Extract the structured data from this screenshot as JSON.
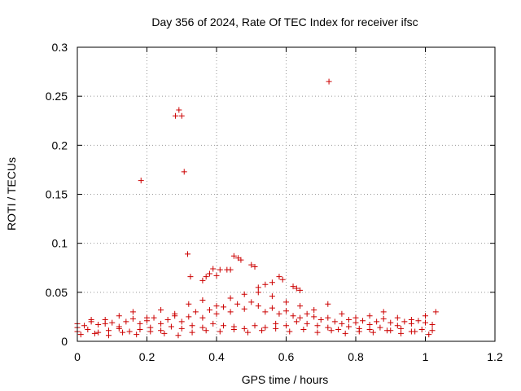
{
  "chart_data": {
    "type": "scatter",
    "title": "Day 356 of 2024, Rate Of TEC Index for receiver ifsc",
    "xlabel": "GPS time / hours",
    "ylabel": "ROTI / TECUs",
    "xlim": [
      0,
      1.2
    ],
    "ylim": [
      0,
      0.3
    ],
    "xticks": [
      "0",
      "0.2",
      "0.4",
      "0.6",
      "0.8",
      "1",
      "1.2"
    ],
    "yticks": [
      "0",
      "0.05",
      "0.1",
      "0.15",
      "0.2",
      "0.25",
      "0.3"
    ],
    "grid": true,
    "marker": "+",
    "marker_color": "#cc0000",
    "series": [
      {
        "x": [
          0.183,
          0.282,
          0.292,
          0.3,
          0.307,
          0.317,
          0.723,
          0.45,
          0.462,
          0.47,
          0.5,
          0.51,
          0.38,
          0.39,
          0.4,
          0.41,
          0.43,
          0.44,
          0.36,
          0.37,
          0.325,
          0.58,
          0.59,
          0.56,
          0.54,
          0.52,
          0.62,
          0.63,
          0.64
        ],
        "y": [
          0.164,
          0.23,
          0.236,
          0.23,
          0.173,
          0.089,
          0.265,
          0.087,
          0.085,
          0.083,
          0.078,
          0.076,
          0.069,
          0.074,
          0.067,
          0.073,
          0.073,
          0.073,
          0.062,
          0.066,
          0.066,
          0.066,
          0.063,
          0.06,
          0.058,
          0.055,
          0.056,
          0.054,
          0.052
        ]
      },
      {
        "x": [
          0.0,
          0.02,
          0.04,
          0.06,
          0.08,
          0.1,
          0.12,
          0.14,
          0.16,
          0.18,
          0.2,
          0.22,
          0.24,
          0.26,
          0.28,
          0.3,
          0.32,
          0.34,
          0.36,
          0.38,
          0.4,
          0.42,
          0.44,
          0.46,
          0.48,
          0.5,
          0.52,
          0.54,
          0.56,
          0.58,
          0.6,
          0.62,
          0.64,
          0.66,
          0.68,
          0.7,
          0.72,
          0.74,
          0.76,
          0.78,
          0.8,
          0.82,
          0.84,
          0.86,
          0.88,
          0.9,
          0.92,
          0.94,
          0.96,
          0.98,
          1.0,
          1.02
        ],
        "y": [
          0.018,
          0.016,
          0.02,
          0.017,
          0.022,
          0.019,
          0.015,
          0.02,
          0.023,
          0.018,
          0.021,
          0.024,
          0.018,
          0.022,
          0.026,
          0.02,
          0.025,
          0.03,
          0.024,
          0.032,
          0.028,
          0.035,
          0.03,
          0.038,
          0.033,
          0.04,
          0.036,
          0.03,
          0.034,
          0.028,
          0.031,
          0.026,
          0.024,
          0.028,
          0.025,
          0.022,
          0.024,
          0.02,
          0.018,
          0.022,
          0.019,
          0.021,
          0.017,
          0.02,
          0.023,
          0.019,
          0.016,
          0.02,
          0.018,
          0.021,
          0.019,
          0.017
        ]
      },
      {
        "x": [
          0.0,
          0.03,
          0.06,
          0.09,
          0.12,
          0.15,
          0.18,
          0.21,
          0.24,
          0.27,
          0.3,
          0.33,
          0.36,
          0.39,
          0.42,
          0.45,
          0.48,
          0.51,
          0.54,
          0.57,
          0.6,
          0.63,
          0.66,
          0.69,
          0.72,
          0.75,
          0.78,
          0.81,
          0.84,
          0.87,
          0.9,
          0.93,
          0.96,
          0.99,
          1.02
        ],
        "y": [
          0.01,
          0.012,
          0.009,
          0.011,
          0.013,
          0.01,
          0.012,
          0.014,
          0.011,
          0.015,
          0.013,
          0.016,
          0.014,
          0.018,
          0.016,
          0.015,
          0.013,
          0.016,
          0.014,
          0.018,
          0.016,
          0.02,
          0.018,
          0.016,
          0.014,
          0.012,
          0.015,
          0.013,
          0.012,
          0.014,
          0.011,
          0.013,
          0.01,
          0.012,
          0.011
        ]
      },
      {
        "x": [
          0.0,
          0.04,
          0.08,
          0.12,
          0.16,
          0.2,
          0.24,
          0.28,
          0.32,
          0.36,
          0.4,
          0.44,
          0.48,
          0.52,
          0.56,
          0.6,
          0.64,
          0.68,
          0.72,
          0.76,
          0.8,
          0.84,
          0.88,
          0.92,
          0.96,
          1.0,
          1.03
        ],
        "y": [
          0.014,
          0.022,
          0.018,
          0.026,
          0.03,
          0.024,
          0.032,
          0.028,
          0.038,
          0.042,
          0.036,
          0.044,
          0.048,
          0.05,
          0.046,
          0.04,
          0.036,
          0.032,
          0.038,
          0.028,
          0.024,
          0.026,
          0.03,
          0.024,
          0.022,
          0.026,
          0.03
        ]
      },
      {
        "x": [
          0.01,
          0.05,
          0.09,
          0.13,
          0.17,
          0.21,
          0.25,
          0.29,
          0.33,
          0.37,
          0.41,
          0.45,
          0.49,
          0.53,
          0.57,
          0.61,
          0.65,
          0.69,
          0.73,
          0.77,
          0.81,
          0.85,
          0.89,
          0.93,
          0.97,
          1.01
        ],
        "y": [
          0.007,
          0.008,
          0.006,
          0.009,
          0.007,
          0.01,
          0.008,
          0.006,
          0.009,
          0.011,
          0.01,
          0.012,
          0.009,
          0.011,
          0.013,
          0.01,
          0.012,
          0.009,
          0.011,
          0.008,
          0.01,
          0.009,
          0.011,
          0.008,
          0.01,
          0.007
        ]
      }
    ]
  }
}
